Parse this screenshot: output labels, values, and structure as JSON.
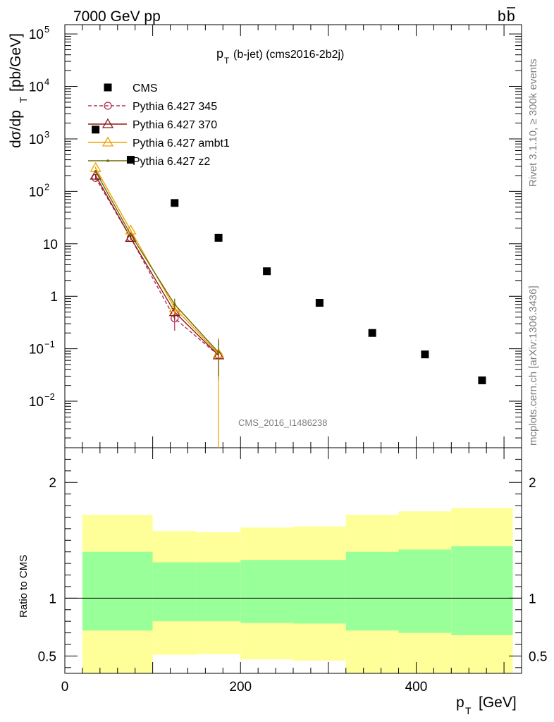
{
  "header": {
    "left": "7000 GeV pp",
    "right_base": "b",
    "right_bar": "b"
  },
  "side": {
    "rivet": "Rivet 3.1.10, ≥ 300k events",
    "mcplots": "mcplots.cern.ch [arXiv:1306.3436]"
  },
  "chart_data": {
    "type": "scatter",
    "title_main": "p",
    "title_sub": "T",
    "title_rest": "(b-jet) (cms2016-2b2j)",
    "watermark": "CMS_2016_I1486238",
    "ylabel": {
      "main": "dσ/dp",
      "sub": "T",
      "units": "[pb/GeV]"
    },
    "xlabel": {
      "main": "p",
      "sub": "T",
      "units": "[GeV]"
    },
    "ratio_label": "Ratio to CMS",
    "xlim": [
      0,
      520
    ],
    "ylim": [
      0.0013,
      150000
    ],
    "ylog": true,
    "ratio_ylim": [
      0.35,
      2.3
    ],
    "x_ticks": [
      "0",
      "200",
      "400"
    ],
    "y_ticks": [
      {
        "v": 100000,
        "base": "10",
        "exp": "5"
      },
      {
        "v": 10000,
        "base": "10",
        "exp": "4"
      },
      {
        "v": 1000,
        "base": "10",
        "exp": "3"
      },
      {
        "v": 100,
        "base": "10",
        "exp": "2"
      },
      {
        "v": 10,
        "base": "10",
        "exp": ""
      },
      {
        "v": 1,
        "base": "1",
        "exp": ""
      },
      {
        "v": 0.1,
        "base": "10",
        "exp": "−1"
      },
      {
        "v": 0.01,
        "base": "10",
        "exp": "−2"
      }
    ],
    "ratio_ticks": [
      "0.5",
      "1",
      "2"
    ],
    "series": [
      {
        "name": "CMS",
        "color": "#000000",
        "marker": "square",
        "x": [
          35,
          75,
          125,
          175,
          230,
          290,
          350,
          410,
          475
        ],
        "y": [
          1500,
          400,
          60,
          13,
          3.0,
          0.75,
          0.2,
          0.078,
          0.025
        ]
      },
      {
        "name": "Pythia 6.427 345",
        "color": "#b03050",
        "marker": "circle",
        "dashed": true,
        "x": [
          35,
          75,
          125,
          175
        ],
        "y": [
          180,
          13,
          0.38,
          0.075
        ],
        "err": [
          [
            165,
            195
          ],
          [
            12,
            14
          ],
          [
            0.22,
            0.55
          ],
          [
            0.025,
            0.15
          ]
        ]
      },
      {
        "name": "Pythia 6.427 370",
        "color": "#8b1a1a",
        "marker": "triangle",
        "x": [
          35,
          75,
          125,
          175
        ],
        "y": [
          200,
          13,
          0.5,
          0.075
        ],
        "err": [
          [
            185,
            215
          ],
          [
            12,
            14
          ],
          [
            0.35,
            0.65
          ],
          [
            0.025,
            0.15
          ]
        ]
      },
      {
        "name": "Pythia 6.427 ambt1",
        "color": "#f0a000",
        "marker": "triangle",
        "x": [
          35,
          75,
          125,
          175
        ],
        "y": [
          280,
          18,
          0.6,
          0.08
        ],
        "err": [
          [
            265,
            295
          ],
          [
            17,
            19
          ],
          [
            0.45,
            0.8
          ],
          [
            0.001,
            0.16
          ]
        ]
      },
      {
        "name": "Pythia 6.427 z2",
        "color": "#6b6b00",
        "marker": "dot",
        "x": [
          35,
          75,
          125,
          175
        ],
        "y": [
          240,
          15,
          0.7,
          0.085
        ],
        "err": [
          [
            225,
            255
          ],
          [
            14,
            16
          ],
          [
            0.55,
            0.9
          ],
          [
            0.03,
            0.15
          ]
        ]
      }
    ],
    "ratio_bands": [
      {
        "x0": 20,
        "x1": 100,
        "yellow": [
          0.35,
          1.72
        ],
        "green": [
          0.72,
          1.4
        ]
      },
      {
        "x0": 100,
        "x1": 150,
        "yellow": [
          0.51,
          1.58
        ],
        "green": [
          0.8,
          1.31
        ]
      },
      {
        "x0": 150,
        "x1": 200,
        "yellow": [
          0.515,
          1.57
        ],
        "green": [
          0.8,
          1.31
        ]
      },
      {
        "x0": 200,
        "x1": 260,
        "yellow": [
          0.47,
          1.61
        ],
        "green": [
          0.785,
          1.33
        ]
      },
      {
        "x0": 260,
        "x1": 320,
        "yellow": [
          0.46,
          1.62
        ],
        "green": [
          0.78,
          1.33
        ]
      },
      {
        "x0": 320,
        "x1": 380,
        "yellow": [
          0.35,
          1.72
        ],
        "green": [
          0.72,
          1.4
        ]
      },
      {
        "x0": 380,
        "x1": 440,
        "yellow": [
          0.35,
          1.75
        ],
        "green": [
          0.7,
          1.42
        ]
      },
      {
        "x0": 440,
        "x1": 510,
        "yellow": [
          0.35,
          1.78
        ],
        "green": [
          0.68,
          1.45
        ]
      }
    ]
  }
}
